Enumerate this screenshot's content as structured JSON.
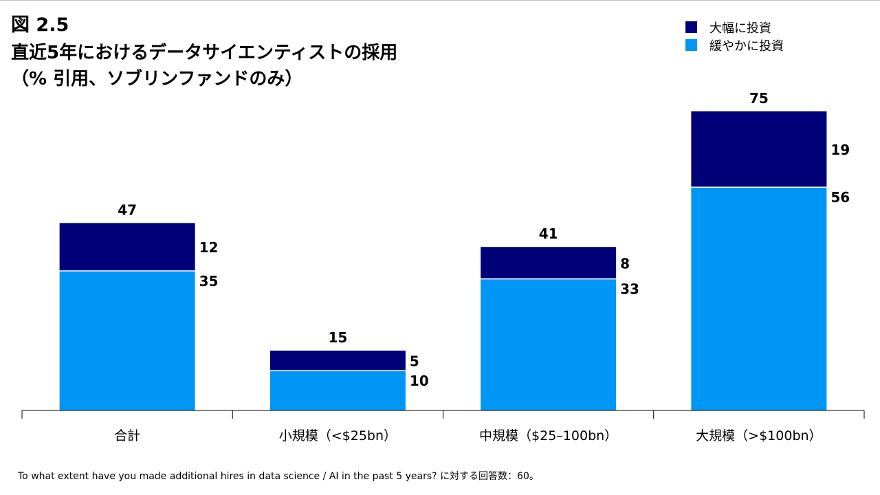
{
  "figure_label": "図 2.5",
  "title_line1": "直近5年におけるデータサイエンティストの採用",
  "title_line2": "（% 引用、ソブリンファンドのみ）",
  "footnote": "To what extent have you made additional hires in data science / AI in the past 5 years? に対する回答数：60。",
  "legend": [
    {
      "label": "大幅に投資",
      "color": "#000078"
    },
    {
      "label": "緩やかに投資",
      "color": "#0096f5"
    }
  ],
  "chart_data": {
    "type": "bar",
    "stacked": true,
    "categories": [
      "合計",
      "小規模（<$25bn）",
      "中規模（$25–100bn）",
      "大規模（>$100bn）"
    ],
    "series": [
      {
        "name": "緩やかに投資",
        "values": [
          35,
          10,
          33,
          56
        ],
        "color": "#0096f5"
      },
      {
        "name": "大幅に投資",
        "values": [
          12,
          5,
          8,
          19
        ],
        "color": "#000078"
      }
    ],
    "totals": [
      47,
      15,
      41,
      75
    ],
    "ylim": [
      0,
      80
    ],
    "grid": false,
    "legend_position": "top-right"
  }
}
